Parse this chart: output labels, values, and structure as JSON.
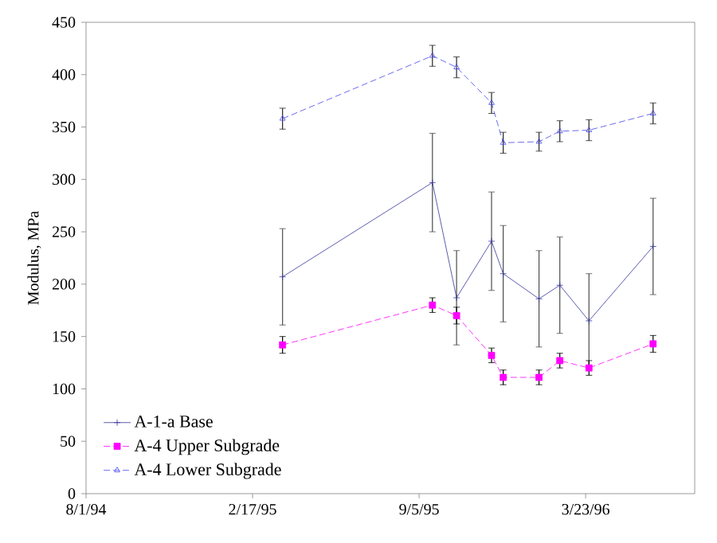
{
  "chart_data": {
    "type": "line",
    "ylabel": "Modulus, MPa",
    "x": [
      "1995-03-25",
      "1995-09-21",
      "1995-10-20",
      "1995-12-01",
      "1995-12-15",
      "1996-01-27",
      "1996-02-21",
      "1996-03-27",
      "1996-06-12"
    ],
    "series": [
      {
        "name": "A-1-a Base",
        "color": "#333399",
        "marker": "cross",
        "line_style": "solid",
        "values": [
          207,
          297,
          187,
          241,
          210,
          186,
          199,
          165,
          236
        ],
        "errors": [
          46,
          47,
          45,
          47,
          46,
          46,
          46,
          45,
          46
        ]
      },
      {
        "name": "A-4 Upper Subgrade",
        "color": "#ff00ff",
        "marker": "square",
        "line_style": "dashed",
        "values": [
          142,
          180,
          170,
          132,
          111,
          111,
          127,
          120,
          143
        ],
        "errors": [
          8,
          7,
          8,
          7,
          7,
          7,
          7,
          7,
          8
        ]
      },
      {
        "name": "A-4 Lower Subgrade",
        "color": "#4444ee",
        "marker": "triangle",
        "line_style": "dashed",
        "values": [
          358,
          418,
          407,
          373,
          335,
          336,
          346,
          347,
          363
        ],
        "errors": [
          10,
          10,
          10,
          10,
          10,
          9,
          10,
          10,
          10
        ]
      }
    ],
    "xlim": [
      "1994-08-01",
      "1996-08-01"
    ],
    "xticks": [
      {
        "value": "1994-08-01",
        "label": "8/1/94"
      },
      {
        "value": "1995-02-17",
        "label": "2/17/95"
      },
      {
        "value": "1995-09-05",
        "label": "9/5/95"
      },
      {
        "value": "1996-03-23",
        "label": "3/23/96"
      }
    ],
    "ylim": [
      0,
      450
    ],
    "yticks": [
      0,
      50,
      100,
      150,
      200,
      250,
      300,
      350,
      400,
      450
    ],
    "grid": false,
    "legend": "bottom left"
  }
}
